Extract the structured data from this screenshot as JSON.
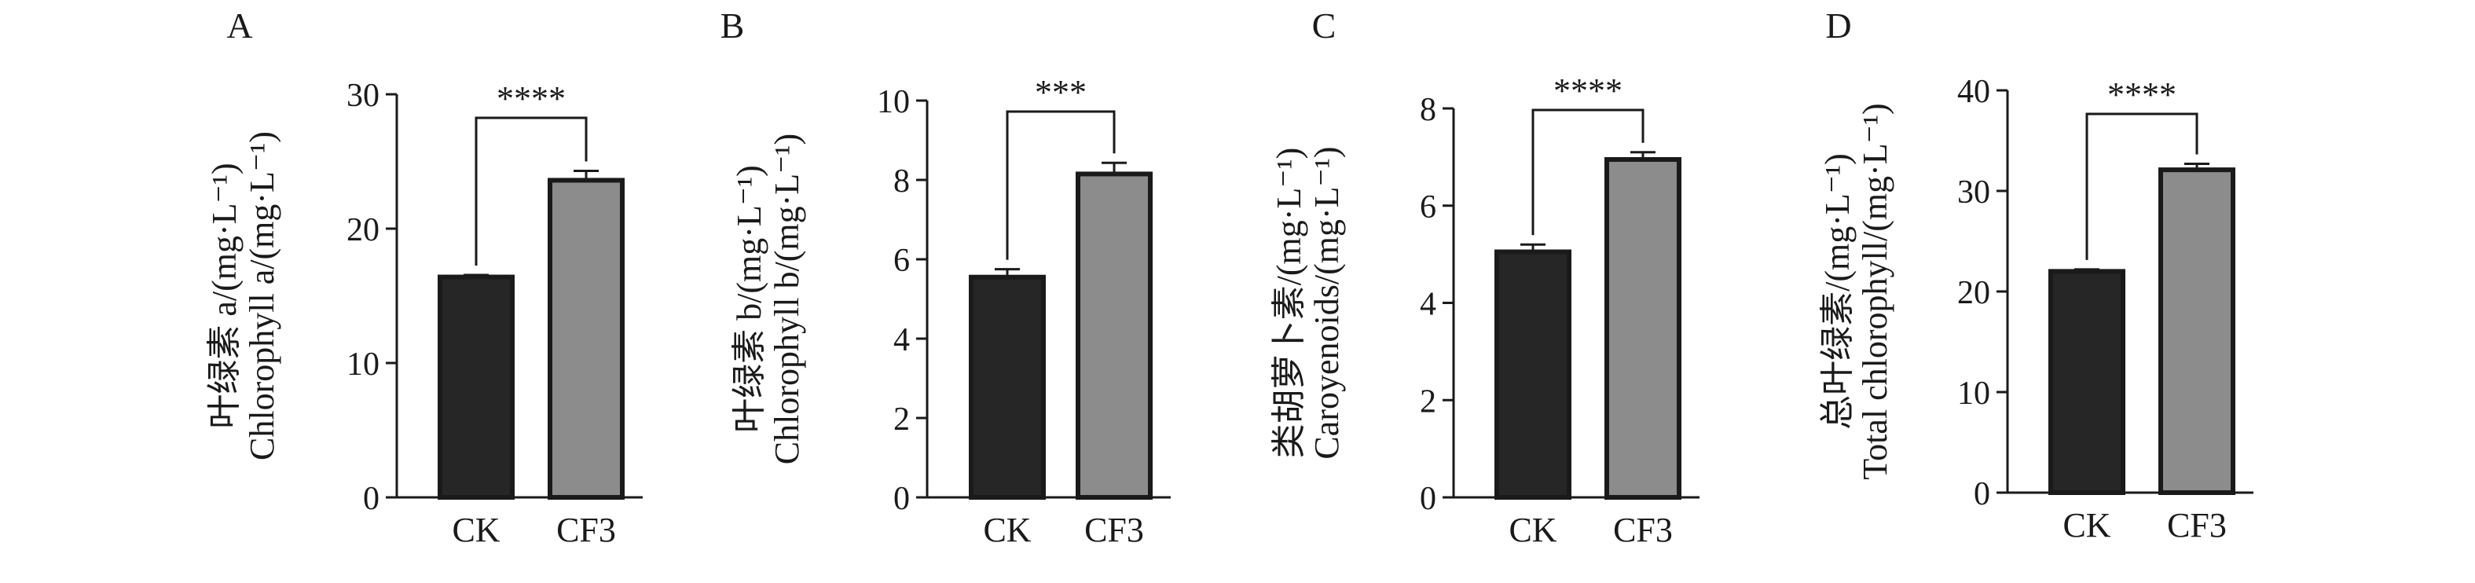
{
  "chart_data": [
    {
      "type": "bar",
      "panel_label": "A",
      "categories": [
        "CK",
        "CF3"
      ],
      "values": [
        16.4,
        23.6
      ],
      "errors": [
        0.15,
        0.7
      ],
      "ylim": [
        0,
        30
      ],
      "yticks": [
        0,
        10,
        20,
        30
      ],
      "ylabel_cn": "叶绿素 a/(mg·L⁻¹)",
      "ylabel_en": "Chlorophyll a/(mg·L⁻¹)",
      "significance": "****",
      "bar_colors": [
        "#262626",
        "#8c8c8c"
      ]
    },
    {
      "type": "bar",
      "panel_label": "B",
      "categories": [
        "CK",
        "CF3"
      ],
      "values": [
        5.55,
        8.15
      ],
      "errors": [
        0.2,
        0.28
      ],
      "ylim": [
        0,
        10
      ],
      "yticks": [
        0,
        2,
        4,
        6,
        8,
        10
      ],
      "ylabel_cn": "叶绿素 b/(mg·L⁻¹)",
      "ylabel_en": "Chlorophyll b/(mg·L⁻¹)",
      "significance": "***",
      "bar_colors": [
        "#262626",
        "#8c8c8c"
      ]
    },
    {
      "type": "bar",
      "panel_label": "C",
      "categories": [
        "CK",
        "CF3"
      ],
      "values": [
        5.05,
        6.95
      ],
      "errors": [
        0.15,
        0.15
      ],
      "ylim": [
        0,
        8
      ],
      "yticks": [
        0,
        2,
        4,
        6,
        8
      ],
      "ylabel_cn": "类胡萝卜素/(mg·L⁻¹)",
      "ylabel_en": "Caroyenoids/(mg·L⁻¹)",
      "significance": "****",
      "bar_colors": [
        "#262626",
        "#8c8c8c"
      ]
    },
    {
      "type": "bar",
      "panel_label": "D",
      "categories": [
        "CK",
        "CF3"
      ],
      "values": [
        22.0,
        32.1
      ],
      "errors": [
        0.2,
        0.6
      ],
      "ylim": [
        0,
        40
      ],
      "yticks": [
        0,
        10,
        20,
        30,
        40
      ],
      "ylabel_cn": "总叶绿素/(mg·L⁻¹)",
      "ylabel_en": "Total chlorophyll/(mg·L⁻¹)",
      "significance": "****",
      "bar_colors": [
        "#262626",
        "#8c8c8c"
      ]
    }
  ]
}
